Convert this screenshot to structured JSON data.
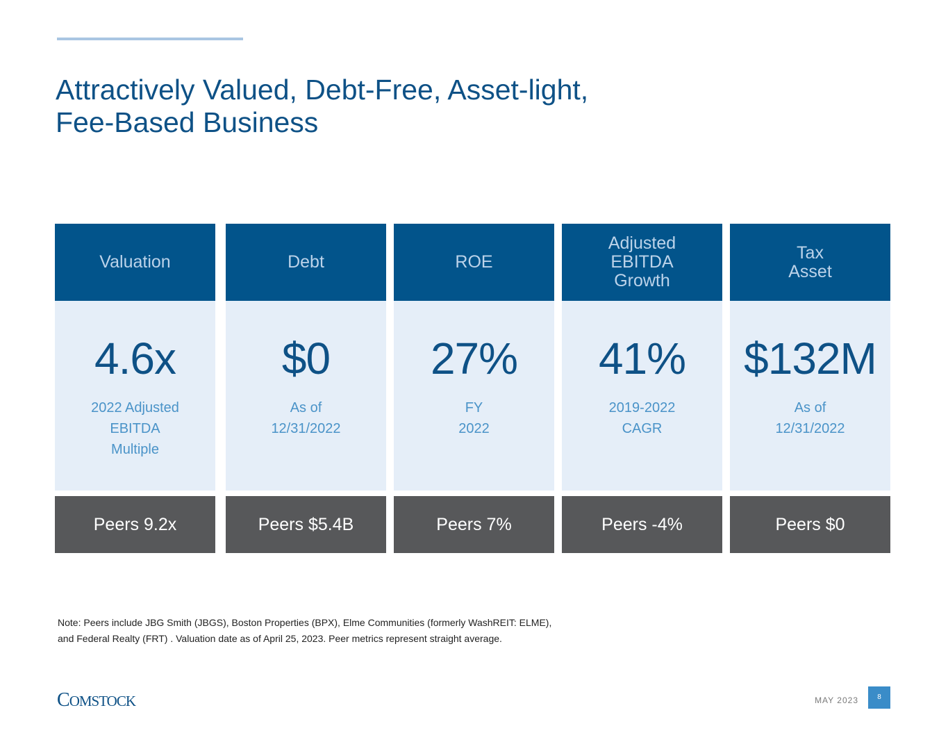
{
  "title": {
    "line1": "Attractively Valued, Debt-Free, Asset-light,",
    "line2": "Fee-Based Business"
  },
  "columns": [
    {
      "header": [
        "Valuation"
      ],
      "metric": "4.6x",
      "sub": [
        "2022 Adjusted",
        "EBITDA",
        "Multiple"
      ],
      "peers": "Peers 9.2x"
    },
    {
      "header": [
        "Debt"
      ],
      "metric": "$0",
      "sub": [
        "As of",
        "12/31/2022"
      ],
      "peers": "Peers $5.4B"
    },
    {
      "header": [
        "ROE"
      ],
      "metric": "27%",
      "sub": [
        "FY",
        "2022"
      ],
      "peers": "Peers 7%"
    },
    {
      "header": [
        "Adjusted",
        "EBITDA",
        "Growth"
      ],
      "metric": "41%",
      "sub": [
        "2019-2022",
        "CAGR"
      ],
      "peers": "Peers -4%"
    },
    {
      "header": [
        "Tax",
        "Asset"
      ],
      "metric": "$132M",
      "sub": [
        "As of",
        "12/31/2022"
      ],
      "peers": "Peers $0"
    }
  ],
  "note": {
    "line1": "Note: Peers include JBG Smith (JBGS), Boston Properties (BPX), Elme Communities (formerly WashREIT: ELME),",
    "line2": "and Federal Realty (FRT) . Valuation date as of April 25, 2023. Peer metrics represent straight average."
  },
  "footer": {
    "logo_c": "C",
    "logo_rest": "OMSTOCK",
    "date": "MAY 2023",
    "page_number": "8"
  },
  "colors": {
    "primary": "#02548b",
    "light": "#e5eef8",
    "peer": "#57585a",
    "accent": "#3a8cc8"
  }
}
